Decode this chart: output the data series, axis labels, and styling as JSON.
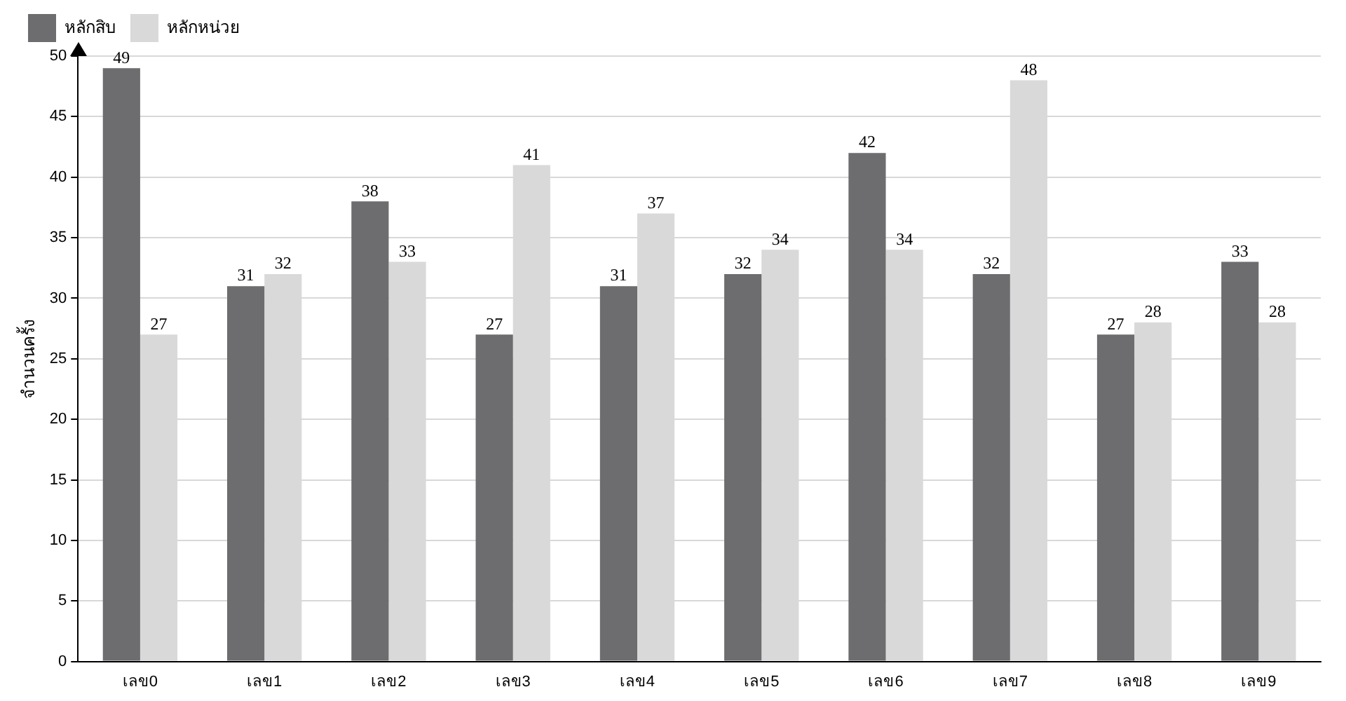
{
  "chart_data": {
    "type": "bar",
    "ylabel": "จำนวนครั้ง",
    "categories": [
      "เลข0",
      "เลข1",
      "เลข2",
      "เลข3",
      "เลข4",
      "เลข5",
      "เลข6",
      "เลข7",
      "เลข8",
      "เลข9"
    ],
    "series": [
      {
        "name": "หลักสิบ",
        "color": "#6d6d6f",
        "values": [
          49,
          31,
          38,
          27,
          31,
          32,
          42,
          32,
          27,
          33
        ]
      },
      {
        "name": "หลักหน่วย",
        "color": "#d9d9d9",
        "values": [
          27,
          32,
          33,
          41,
          37,
          34,
          34,
          48,
          28,
          28
        ]
      }
    ],
    "ylim": [
      0,
      50
    ],
    "yticks": [
      0,
      5,
      10,
      15,
      20,
      25,
      30,
      35,
      40,
      45,
      50
    ],
    "grid": "y",
    "legend": "top left",
    "data_labels": true
  }
}
